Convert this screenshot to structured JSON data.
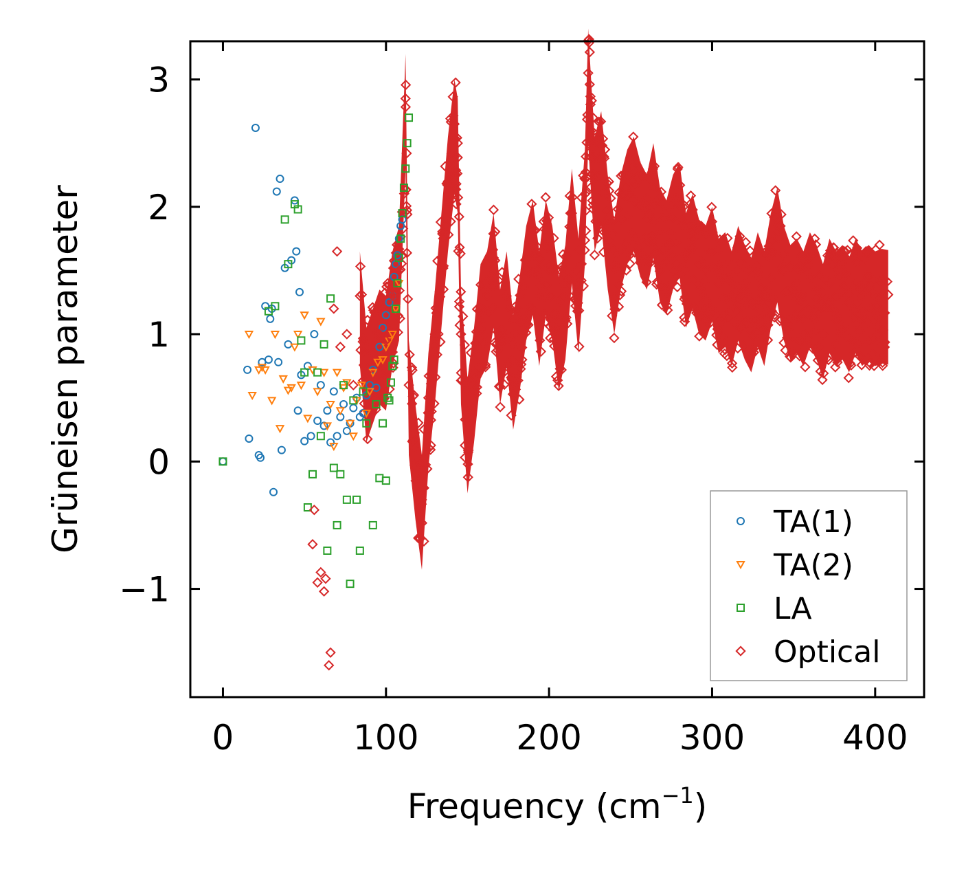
{
  "chart_data": {
    "type": "scatter",
    "title": "",
    "xlabel": "Frequency (cm",
    "xlabel_sup": "−1",
    "xlabel_end": ")",
    "ylabel": "Grüneisen parameter",
    "xlim": [
      -20,
      430
    ],
    "ylim": [
      -1.85,
      3.3
    ],
    "xticks": [
      0,
      100,
      200,
      300,
      400
    ],
    "xtick_labels": [
      "0",
      "100",
      "200",
      "300",
      "400"
    ],
    "yticks": [
      -1,
      0,
      1,
      2,
      3
    ],
    "ytick_labels": [
      "−1",
      "0",
      "1",
      "2",
      "3"
    ],
    "legend_position": "lower-right",
    "series": [
      {
        "name": "TA(1)",
        "marker": "circle",
        "color": "#1f77b4",
        "x": [
          0,
          15,
          16,
          20,
          22,
          23,
          24,
          26,
          28,
          29,
          30,
          31,
          33,
          34,
          35,
          36,
          38,
          40,
          42,
          44,
          45,
          46,
          47,
          48,
          50,
          52,
          54,
          56,
          58,
          60,
          62,
          64,
          66,
          68,
          70,
          72,
          74,
          76,
          78,
          80,
          82,
          84,
          86,
          88,
          90,
          92,
          94,
          96,
          98,
          100,
          102,
          104,
          105,
          106,
          107,
          108,
          109,
          110
        ],
        "y": [
          0,
          0.72,
          0.18,
          2.62,
          0.05,
          0.03,
          0.78,
          1.22,
          0.8,
          1.12,
          1.2,
          -0.24,
          2.12,
          0.78,
          2.22,
          0.09,
          1.52,
          0.92,
          1.58,
          2.05,
          1.65,
          0.4,
          1.33,
          0.68,
          0.16,
          0.75,
          0.2,
          1.0,
          0.32,
          0.6,
          0.28,
          0.4,
          0.15,
          0.55,
          0.2,
          0.35,
          0.45,
          0.24,
          0.3,
          0.42,
          0.5,
          0.35,
          0.38,
          0.52,
          0.6,
          0.72,
          0.58,
          0.9,
          1.05,
          1.15,
          1.25,
          1.3,
          1.45,
          1.55,
          1.62,
          1.75,
          1.85,
          1.9
        ]
      },
      {
        "name": "TA(2)",
        "marker": "triangle",
        "color": "#ff7f0e",
        "x": [
          16,
          18,
          22,
          24,
          26,
          30,
          32,
          35,
          37,
          40,
          42,
          44,
          46,
          48,
          50,
          52,
          55,
          58,
          60,
          62,
          64,
          66,
          68,
          70,
          72,
          74,
          76,
          78,
          80,
          82,
          85,
          88,
          90,
          92,
          95,
          98,
          100,
          102,
          104,
          106,
          108
        ],
        "y": [
          1.0,
          0.52,
          0.72,
          0.74,
          0.72,
          0.48,
          1.0,
          0.26,
          0.65,
          0.56,
          0.58,
          0.9,
          1.0,
          0.6,
          1.15,
          0.34,
          0.72,
          0.55,
          1.1,
          0.7,
          0.28,
          0.45,
          0.12,
          0.7,
          0.4,
          0.58,
          0.62,
          0.3,
          0.2,
          0.48,
          0.6,
          0.38,
          0.55,
          0.7,
          0.78,
          0.8,
          0.9,
          0.95,
          1.0,
          1.2,
          1.4
        ]
      },
      {
        "name": "LA",
        "marker": "square",
        "color": "#2ca02c",
        "x": [
          0,
          28,
          32,
          38,
          40,
          44,
          46,
          48,
          50,
          52,
          55,
          58,
          60,
          62,
          64,
          66,
          68,
          70,
          72,
          74,
          76,
          78,
          80,
          82,
          84,
          86,
          88,
          92,
          94,
          96,
          98,
          100,
          101,
          102,
          103,
          104,
          105,
          106,
          107,
          108,
          109,
          110,
          111,
          112,
          113,
          114
        ],
        "y": [
          0,
          1.18,
          1.22,
          1.9,
          1.55,
          2.02,
          1.98,
          0.95,
          0.7,
          -0.36,
          -0.1,
          0.7,
          0.2,
          0.92,
          -0.7,
          1.28,
          -0.05,
          -0.5,
          -0.1,
          0.6,
          -0.3,
          -0.96,
          0.48,
          -0.3,
          -0.7,
          0.55,
          0.3,
          -0.5,
          0.45,
          -0.13,
          0.3,
          -0.15,
          0.5,
          0.48,
          0.62,
          0.75,
          0.8,
          1.2,
          1.4,
          1.6,
          1.75,
          1.95,
          2.15,
          2.3,
          2.5,
          2.7
        ]
      },
      {
        "name": "Optical",
        "marker": "diamond",
        "color": "#d62728",
        "x": [
          55,
          56,
          58,
          60,
          62,
          63,
          65,
          66,
          68,
          70,
          72,
          76,
          80,
          84,
          88,
          92,
          96,
          100,
          104,
          108,
          112,
          114,
          118,
          122,
          126,
          130,
          134,
          138,
          142,
          144,
          146,
          150,
          154,
          158,
          162,
          166,
          170,
          174,
          178,
          182,
          186,
          190,
          194,
          198,
          202,
          206,
          210,
          214,
          218,
          222,
          224,
          226,
          228,
          232,
          236,
          240,
          244,
          248,
          252,
          256,
          260,
          264,
          268,
          272,
          276,
          280,
          284,
          288,
          292,
          296,
          300,
          304,
          308,
          312,
          316,
          320,
          324,
          328,
          332,
          336,
          340,
          344,
          348,
          352,
          356,
          360,
          364,
          368,
          372,
          376,
          380,
          384,
          388,
          392,
          396,
          400,
          404,
          408
        ],
        "y": [
          -0.65,
          -0.38,
          -0.95,
          -0.87,
          -1.02,
          -0.92,
          -1.6,
          -1.5,
          1.2,
          1.65,
          0.9,
          1.0,
          0.6,
          1.3,
          0.7,
          0.85,
          1.0,
          0.95,
          1.3,
          1.5,
          2.85,
          0.6,
          0.1,
          -0.3,
          0.5,
          1.0,
          1.6,
          2.2,
          2.65,
          2.5,
          1.0,
          0.3,
          0.7,
          1.2,
          1.3,
          1.6,
          1.0,
          1.3,
          0.8,
          1.1,
          1.5,
          1.7,
          1.3,
          1.7,
          1.5,
          1.1,
          1.35,
          1.95,
          1.4,
          2.1,
          3.05,
          2.6,
          2.2,
          2.4,
          1.9,
          1.55,
          1.9,
          2.1,
          2.2,
          2.0,
          1.9,
          2.15,
          1.8,
          1.7,
          1.9,
          2.0,
          1.6,
          1.75,
          1.55,
          1.5,
          1.65,
          1.4,
          1.45,
          1.3,
          1.5,
          1.35,
          1.25,
          1.45,
          1.3,
          1.6,
          1.8,
          1.5,
          1.35,
          1.4,
          1.3,
          1.45,
          1.35,
          1.2,
          1.4,
          1.3,
          1.35,
          1.25,
          1.4,
          1.3,
          1.35,
          1.3,
          1.32,
          1.31
        ]
      }
    ]
  }
}
